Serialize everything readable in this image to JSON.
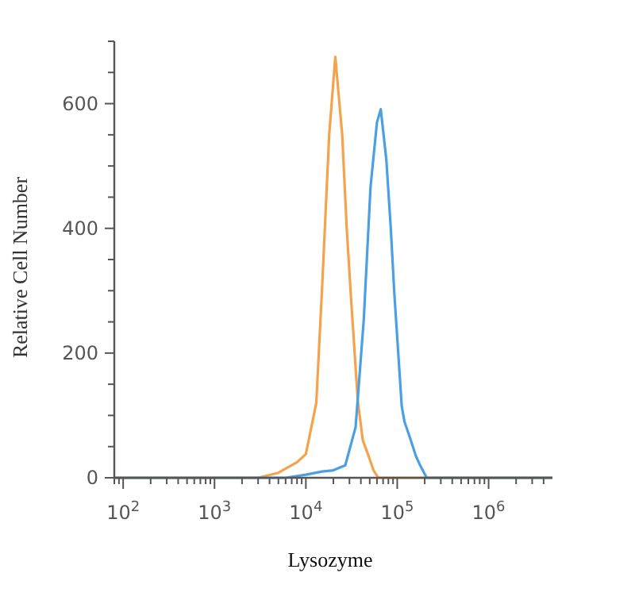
{
  "chart_data": {
    "type": "line",
    "xlabel": "Lysozyme",
    "ylabel": "Relative Cell Number",
    "log": "x",
    "grid": false,
    "marker": "none",
    "line_style": "solid",
    "xlim": [
      80,
      5000000
    ],
    "ylim": [
      0,
      700
    ],
    "xticks": [
      {
        "value": 80,
        "label": null
      },
      {
        "value": 90,
        "label": null
      },
      {
        "value": 100,
        "label": "10$^{2}$"
      },
      {
        "value": 200,
        "label": null
      },
      {
        "value": 300,
        "label": null
      },
      {
        "value": 400,
        "label": null
      },
      {
        "value": 500,
        "label": null
      },
      {
        "value": 600,
        "label": null
      },
      {
        "value": 700,
        "label": null
      },
      {
        "value": 800,
        "label": null
      },
      {
        "value": 900,
        "label": null
      },
      {
        "value": 1000,
        "label": "10$^{3}$"
      },
      {
        "value": 2000,
        "label": null
      },
      {
        "value": 3000,
        "label": null
      },
      {
        "value": 4000,
        "label": null
      },
      {
        "value": 5000,
        "label": null
      },
      {
        "value": 6000,
        "label": null
      },
      {
        "value": 7000,
        "label": null
      },
      {
        "value": 8000,
        "label": null
      },
      {
        "value": 9000,
        "label": null
      },
      {
        "value": 10000,
        "label": "10$^{4}$"
      },
      {
        "value": 20000,
        "label": null
      },
      {
        "value": 30000,
        "label": null
      },
      {
        "value": 40000,
        "label": null
      },
      {
        "value": 50000,
        "label": null
      },
      {
        "value": 60000,
        "label": null
      },
      {
        "value": 70000,
        "label": null
      },
      {
        "value": 80000,
        "label": null
      },
      {
        "value": 90000,
        "label": null
      },
      {
        "value": 100000,
        "label": "10$^{5}$"
      },
      {
        "value": 200000,
        "label": null
      },
      {
        "value": 300000,
        "label": null
      },
      {
        "value": 400000,
        "label": null
      },
      {
        "value": 500000,
        "label": null
      },
      {
        "value": 600000,
        "label": null
      },
      {
        "value": 700000,
        "label": null
      },
      {
        "value": 800000,
        "label": null
      },
      {
        "value": 900000,
        "label": null
      },
      {
        "value": 1000000,
        "label": "10$^{6}$"
      },
      {
        "value": 2000000,
        "label": null
      },
      {
        "value": 3000000,
        "label": null
      },
      {
        "value": 4000000,
        "label": null
      }
    ],
    "yticks": [
      0,
      {
        "value": 50,
        "label": null
      },
      {
        "value": 100,
        "label": null
      },
      {
        "value": 150,
        "label": null
      },
      200,
      {
        "value": 250,
        "label": null
      },
      {
        "value": 300,
        "label": null
      },
      {
        "value": 350,
        "label": null
      },
      400,
      {
        "value": 450,
        "label": null
      },
      {
        "value": 500,
        "label": null
      },
      {
        "value": 550,
        "label": null
      },
      600,
      {
        "value": 650,
        "label": null
      },
      {
        "value": 700,
        "label": null
      }
    ],
    "series": [
      {
        "color": "#f5a24c",
        "x": [
          80,
          3000,
          5000,
          8000,
          10000,
          13000,
          15000,
          18000,
          21000,
          25000,
          28000,
          31000,
          37000,
          42000,
          48000,
          55000,
          62000,
          100000,
          5000000
        ],
        "values": [
          0,
          0,
          8,
          25,
          38,
          120,
          300,
          550,
          675,
          550,
          400,
          295,
          124,
          60,
          37,
          12,
          0,
          0,
          0
        ]
      },
      {
        "color": "#4c9fe2",
        "x": [
          80,
          6000,
          10000,
          15000,
          20000,
          27000,
          35000,
          43000,
          51000,
          60000,
          66000,
          76000,
          85000,
          93000,
          112000,
          120000,
          138000,
          160000,
          178000,
          210000,
          5000000
        ],
        "values": [
          0,
          0,
          5,
          10,
          12,
          20,
          81,
          253,
          466,
          570,
          591,
          510,
          400,
          295,
          115,
          90,
          64,
          35,
          20,
          0,
          0
        ]
      }
    ]
  }
}
